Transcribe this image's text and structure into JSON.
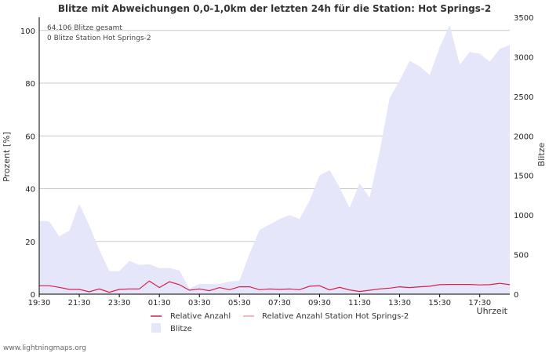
{
  "chart_data": {
    "type": "area",
    "title": "Blitze mit Abweichungen 0,0-1,0km der letzten 24h für die Station: Hot Springs-2",
    "ylabel_left": "Prozent   [%]",
    "ylabel_right": "Blitze",
    "xlabel": "Uhrzeit",
    "ylim_left": [
      0,
      105
    ],
    "ylim_right": [
      0,
      3500
    ],
    "yticks_left": [
      0,
      20,
      40,
      60,
      80,
      100
    ],
    "yticks_right": [
      0,
      500,
      1000,
      1500,
      2000,
      2500,
      3000,
      3500
    ],
    "x_tick_labels": [
      "19:30",
      "21:30",
      "23:30",
      "01:30",
      "03:30",
      "05:30",
      "07:30",
      "09:30",
      "11:30",
      "13:30",
      "15:30",
      "17:30"
    ],
    "info_lines": [
      "64.106 Blitze gesamt",
      "0 Blitze Station Hot Springs-2"
    ],
    "series": [
      {
        "name": "Relative Anzahl",
        "axis": "left",
        "color": "#d6204a",
        "values": [
          3.2,
          3.2,
          2.6,
          1.8,
          1.8,
          0.9,
          2.0,
          0.7,
          1.8,
          2.0,
          2.0,
          5.0,
          2.5,
          4.7,
          3.6,
          1.5,
          2.0,
          1.3,
          2.5,
          1.7,
          2.8,
          2.8,
          1.7,
          2.0,
          1.8,
          2.0,
          1.7,
          3.0,
          3.2,
          1.6,
          2.6,
          1.6,
          1.0,
          1.5,
          2.0,
          2.3,
          2.8,
          2.5,
          2.8,
          3.0,
          3.6,
          3.7,
          3.7,
          3.7,
          3.5,
          3.6,
          4.1,
          3.6
        ]
      },
      {
        "name": "Relative Anzahl Station Hot Springs-2",
        "axis": "left",
        "color": "#f0a0a0",
        "values": [
          0,
          0,
          0,
          0,
          0,
          0,
          0,
          0,
          0,
          0,
          0,
          0,
          0,
          0,
          0,
          0,
          0,
          0,
          0,
          0,
          0,
          0,
          0,
          0,
          0,
          0,
          0,
          0,
          0,
          0,
          0,
          0,
          0,
          0,
          0,
          0,
          0,
          0,
          0,
          0,
          0,
          0,
          0,
          0,
          0,
          0,
          0,
          0
        ]
      },
      {
        "name": "Blitze",
        "axis": "right",
        "color": "#e6e6fa",
        "values": [
          930,
          920,
          730,
          800,
          1140,
          870,
          560,
          290,
          290,
          420,
          370,
          380,
          330,
          330,
          300,
          70,
          130,
          130,
          130,
          160,
          170,
          510,
          810,
          880,
          950,
          1000,
          950,
          1180,
          1500,
          1570,
          1350,
          1090,
          1400,
          1220,
          1800,
          2480,
          2700,
          2950,
          2880,
          2770,
          3120,
          3400,
          2900,
          3060,
          3040,
          2940,
          3100,
          3150
        ]
      }
    ]
  },
  "footer": "www.lightningmaps.org"
}
